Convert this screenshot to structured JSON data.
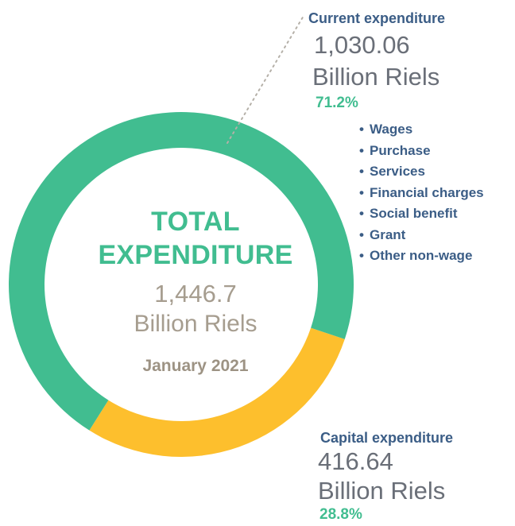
{
  "chart_data": {
    "type": "pie",
    "variant": "donut",
    "center": {
      "title_line1": "TOTAL",
      "title_line2": "EXPENDITURE",
      "value": "1,446.7",
      "unit": "Billion Riels",
      "period": "January 2021"
    },
    "slices": [
      {
        "label": "Current expenditure",
        "value": 1030.06,
        "value_text": "1,030.06",
        "unit": "Billion Riels",
        "percent": 71.2,
        "percent_text": "71.2%",
        "color": "#41bd90",
        "components": [
          "Wages",
          "Purchase",
          "Services",
          "Financial charges",
          "Social benefit",
          "Grant",
          "Other non-wage"
        ]
      },
      {
        "label": "Capital expenditure",
        "value": 416.64,
        "value_text": "416.64",
        "unit": "Billion Riels",
        "percent": 28.8,
        "percent_text": "28.8%",
        "color": "#fdbf2d"
      }
    ]
  },
  "colors": {
    "current": "#41bd90",
    "capital": "#fdbf2d",
    "label_blue": "#3b5d86",
    "center_grey": "#a69d8f",
    "leader_line": "#b5b0a8"
  },
  "icons": {
    "bullet": "bullet-icon"
  }
}
